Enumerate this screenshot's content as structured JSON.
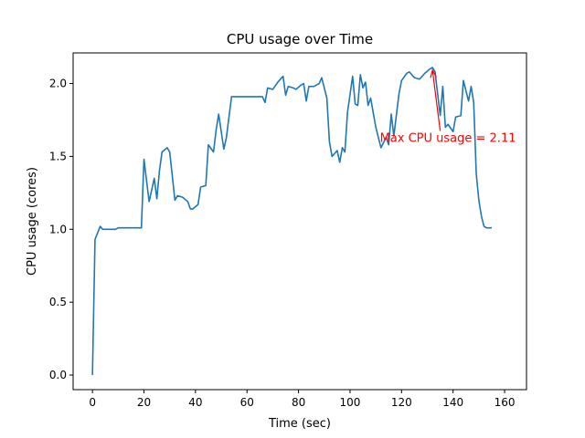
{
  "chart_data": {
    "type": "line",
    "title": "CPU usage over Time",
    "xlabel": "Time (sec)",
    "ylabel": "CPU usage (cores)",
    "xlim": [
      -7.5,
      168.5
    ],
    "ylim": [
      -0.1,
      2.21
    ],
    "x_ticks": [
      0,
      20,
      40,
      60,
      80,
      100,
      120,
      140,
      160
    ],
    "y_ticks": [
      0.0,
      0.5,
      1.0,
      1.5,
      2.0
    ],
    "y_tick_labels": [
      "0.0",
      "0.5",
      "1.0",
      "1.5",
      "2.0"
    ],
    "grid": false,
    "legend": "none",
    "colors": {
      "line": "#1f77b4",
      "annotation": "#ff0000"
    },
    "series": [
      {
        "values": [
          [
            0,
            0.0
          ],
          [
            1,
            0.93
          ],
          [
            3,
            1.02
          ],
          [
            4,
            1.0
          ],
          [
            6,
            1.0
          ],
          [
            7,
            1.0
          ],
          [
            9,
            1.0
          ],
          [
            10,
            1.01
          ],
          [
            13,
            1.01
          ],
          [
            15,
            1.01
          ],
          [
            17,
            1.01
          ],
          [
            19,
            1.01
          ],
          [
            20,
            1.48
          ],
          [
            22,
            1.19
          ],
          [
            24,
            1.35
          ],
          [
            25,
            1.21
          ],
          [
            26,
            1.4
          ],
          [
            27,
            1.53
          ],
          [
            29,
            1.56
          ],
          [
            30,
            1.53
          ],
          [
            32,
            1.2
          ],
          [
            33,
            1.23
          ],
          [
            35,
            1.22
          ],
          [
            37,
            1.19
          ],
          [
            38,
            1.14
          ],
          [
            39,
            1.14
          ],
          [
            41,
            1.17
          ],
          [
            42,
            1.29
          ],
          [
            44,
            1.3
          ],
          [
            45,
            1.58
          ],
          [
            47,
            1.53
          ],
          [
            48,
            1.68
          ],
          [
            49,
            1.79
          ],
          [
            51,
            1.55
          ],
          [
            52,
            1.63
          ],
          [
            54,
            1.91
          ],
          [
            66,
            1.91
          ],
          [
            67,
            1.87
          ],
          [
            68,
            1.97
          ],
          [
            70,
            1.96
          ],
          [
            72,
            2.01
          ],
          [
            74,
            2.05
          ],
          [
            75,
            1.92
          ],
          [
            76,
            1.98
          ],
          [
            78,
            1.97
          ],
          [
            79,
            1.96
          ],
          [
            81,
            1.99
          ],
          [
            82,
            2.0
          ],
          [
            83,
            1.88
          ],
          [
            84,
            1.98
          ],
          [
            86,
            1.98
          ],
          [
            88,
            2.0
          ],
          [
            89,
            2.04
          ],
          [
            91,
            1.9
          ],
          [
            92,
            1.6
          ],
          [
            93,
            1.5
          ],
          [
            95,
            1.54
          ],
          [
            96,
            1.46
          ],
          [
            97,
            1.56
          ],
          [
            98,
            1.53
          ],
          [
            99,
            1.8
          ],
          [
            101,
            2.05
          ],
          [
            102,
            1.86
          ],
          [
            103,
            1.85
          ],
          [
            104,
            2.06
          ],
          [
            105,
            1.97
          ],
          [
            106,
            2.01
          ],
          [
            107,
            1.85
          ],
          [
            108,
            1.9
          ],
          [
            110,
            1.7
          ],
          [
            112,
            1.56
          ],
          [
            114,
            1.63
          ],
          [
            115,
            1.58
          ],
          [
            116,
            1.79
          ],
          [
            117,
            1.64
          ],
          [
            119,
            1.93
          ],
          [
            120,
            2.02
          ],
          [
            122,
            2.07
          ],
          [
            123,
            2.08
          ],
          [
            125,
            2.04
          ],
          [
            127,
            2.03
          ],
          [
            129,
            2.07
          ],
          [
            131,
            2.1
          ],
          [
            132,
            2.11
          ],
          [
            133,
            2.08
          ],
          [
            135,
            1.78
          ],
          [
            136,
            1.98
          ],
          [
            137,
            1.7
          ],
          [
            138,
            1.72
          ],
          [
            140,
            1.67
          ],
          [
            141,
            1.77
          ],
          [
            143,
            1.78
          ],
          [
            144,
            2.02
          ],
          [
            145,
            1.95
          ],
          [
            146,
            1.88
          ],
          [
            147,
            1.98
          ],
          [
            148,
            1.87
          ],
          [
            149,
            1.38
          ],
          [
            150,
            1.2
          ],
          [
            151,
            1.09
          ],
          [
            152,
            1.02
          ],
          [
            153,
            1.01
          ],
          [
            155,
            1.01
          ]
        ]
      }
    ],
    "annotations": [
      {
        "text": "Max CPU usage = 2.11",
        "xy": [
          132,
          2.11
        ],
        "xytext": [
          113,
          1.6
        ]
      }
    ]
  }
}
